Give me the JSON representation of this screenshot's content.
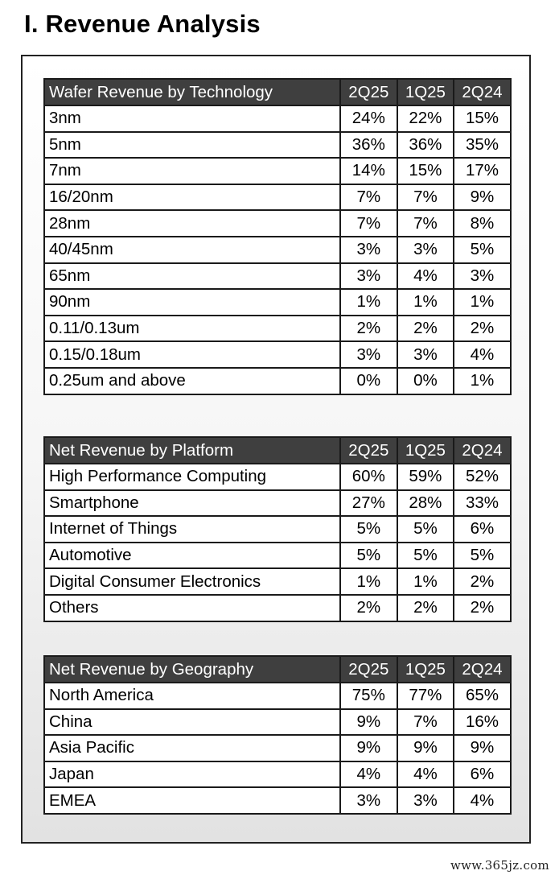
{
  "title": "I.  Revenue Analysis",
  "tables": [
    {
      "header": [
        "Wafer Revenue by Technology",
        "2Q25",
        "1Q25",
        "2Q24"
      ],
      "rows": [
        [
          "3nm",
          "24%",
          "22%",
          "15%"
        ],
        [
          "5nm",
          "36%",
          "36%",
          "35%"
        ],
        [
          "7nm",
          "14%",
          "15%",
          "17%"
        ],
        [
          "16/20nm",
          "7%",
          "7%",
          "9%"
        ],
        [
          "28nm",
          "7%",
          "7%",
          "8%"
        ],
        [
          "40/45nm",
          "3%",
          "3%",
          "5%"
        ],
        [
          "65nm",
          "3%",
          "4%",
          "3%"
        ],
        [
          "90nm",
          "1%",
          "1%",
          "1%"
        ],
        [
          "0.11/0.13um",
          "2%",
          "2%",
          "2%"
        ],
        [
          "0.15/0.18um",
          "3%",
          "3%",
          "4%"
        ],
        [
          "0.25um and above",
          "0%",
          "0%",
          "1%"
        ]
      ]
    },
    {
      "header": [
        "Net Revenue by Platform",
        "2Q25",
        "1Q25",
        "2Q24"
      ],
      "rows": [
        [
          "High Performance Computing",
          "60%",
          "59%",
          "52%"
        ],
        [
          "Smartphone",
          "27%",
          "28%",
          "33%"
        ],
        [
          "Internet of Things",
          "5%",
          "5%",
          "6%"
        ],
        [
          "Automotive",
          "5%",
          "5%",
          "5%"
        ],
        [
          "Digital Consumer Electronics",
          "1%",
          "1%",
          "2%"
        ],
        [
          "Others",
          "2%",
          "2%",
          "2%"
        ]
      ]
    },
    {
      "header": [
        "Net Revenue by Geography",
        "2Q25",
        "1Q25",
        "2Q24"
      ],
      "rows": [
        [
          "North America",
          "75%",
          "77%",
          "65%"
        ],
        [
          "China",
          "9%",
          "7%",
          "16%"
        ],
        [
          "Asia Pacific",
          "9%",
          "9%",
          "9%"
        ],
        [
          "Japan",
          "4%",
          "4%",
          "6%"
        ],
        [
          "EMEA",
          "3%",
          "3%",
          "4%"
        ]
      ]
    }
  ],
  "watermark": "www.365jz.com"
}
